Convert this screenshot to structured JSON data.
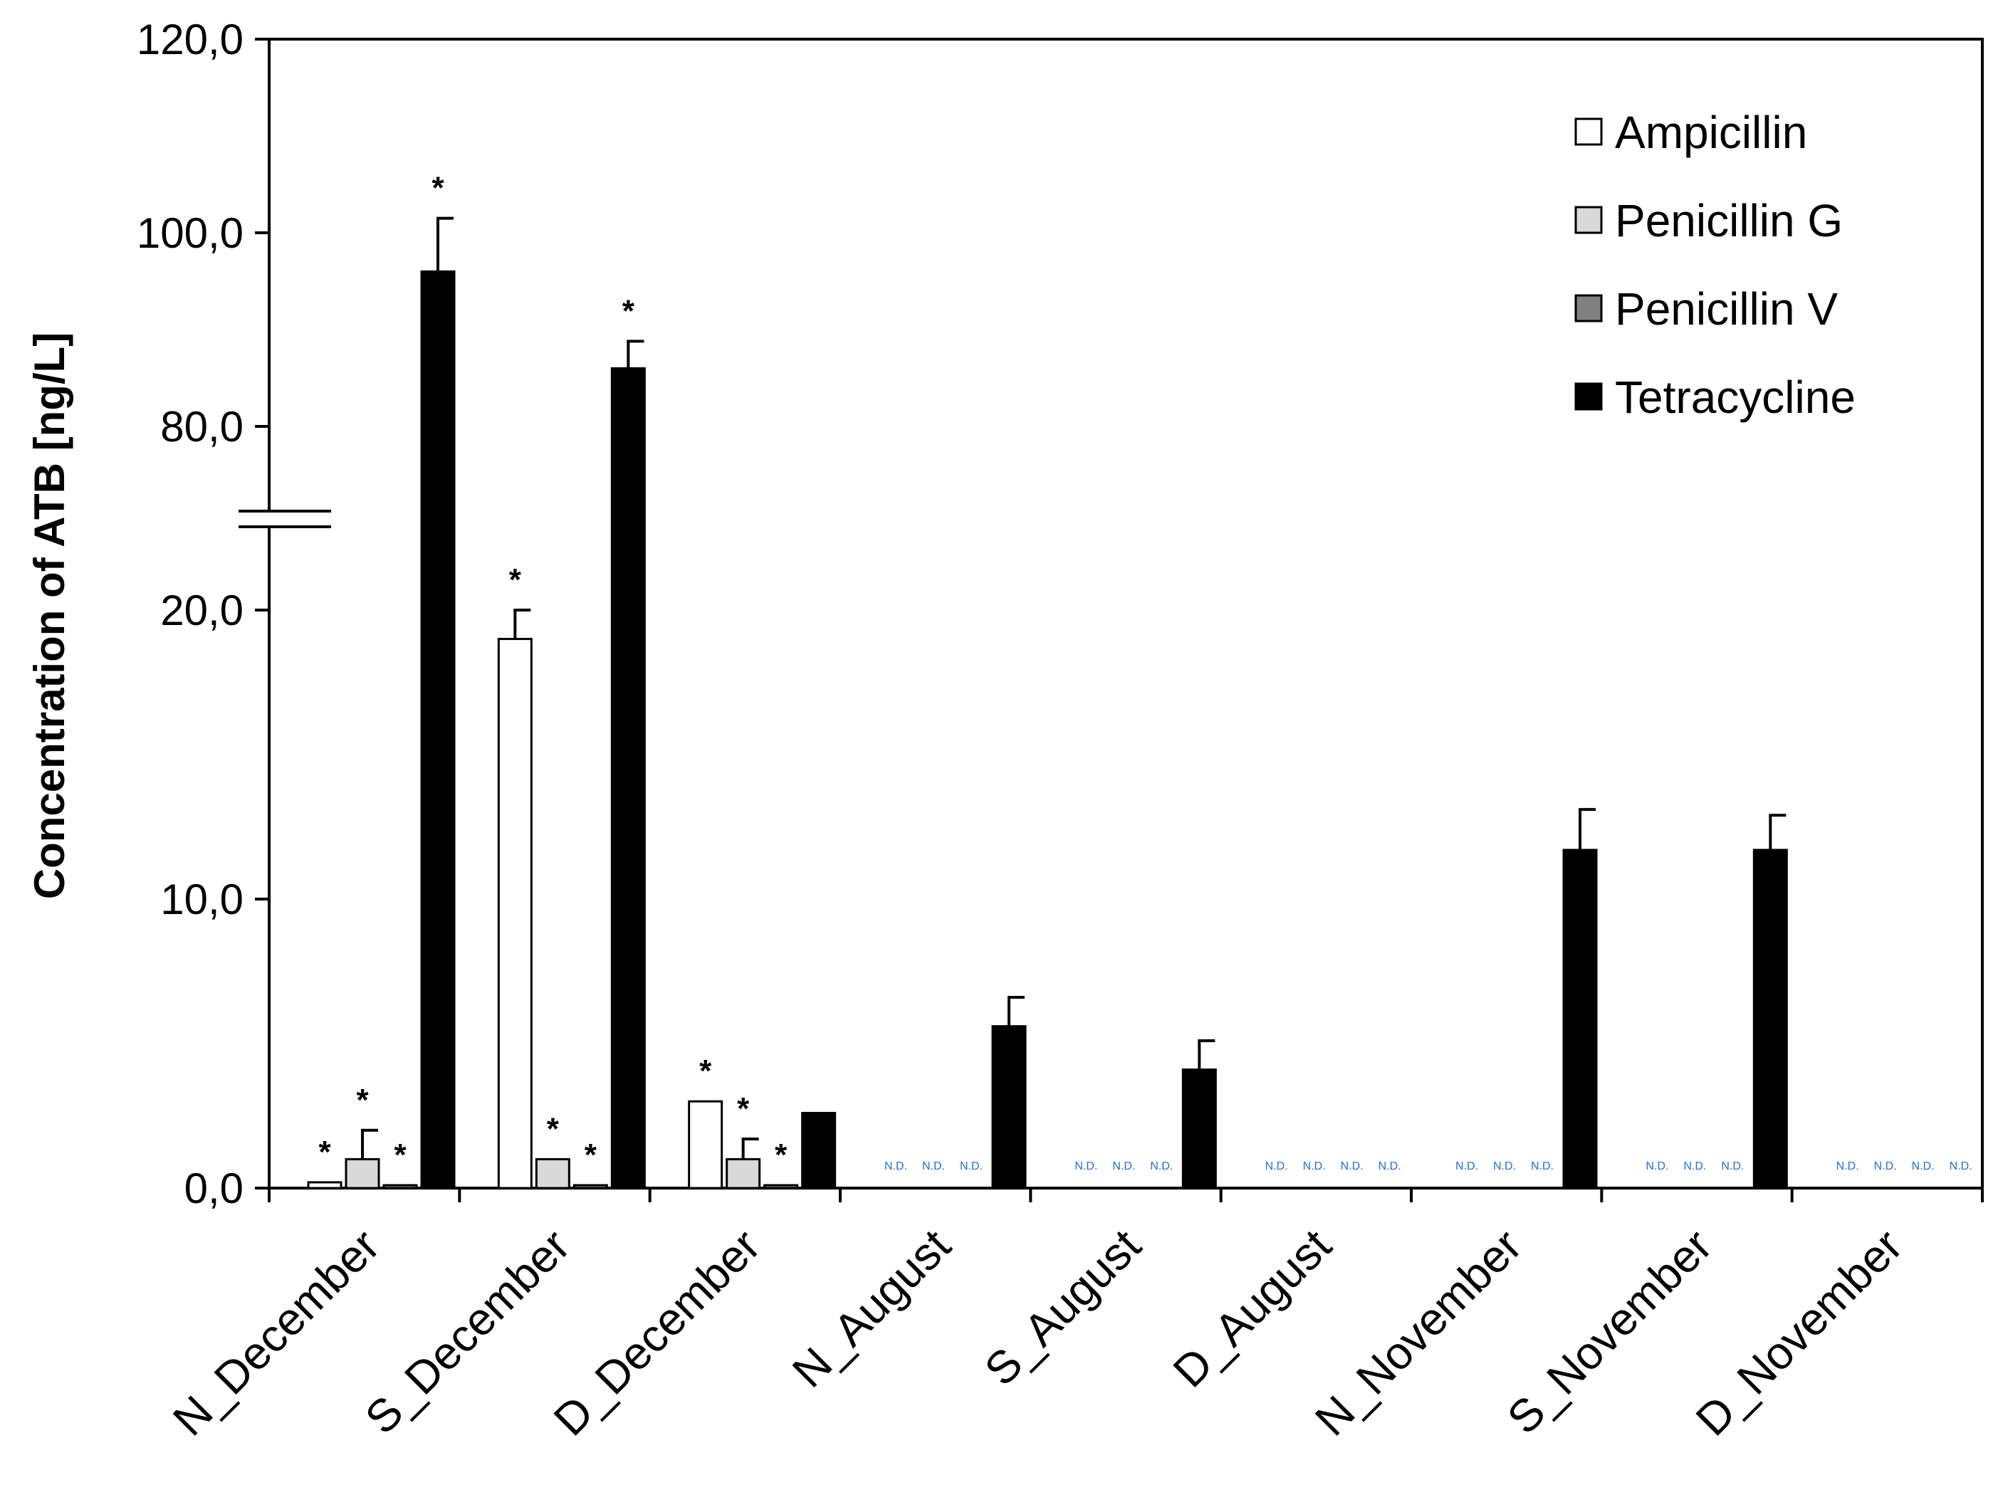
{
  "chart_data": {
    "type": "bar",
    "title": "",
    "xlabel": "",
    "ylabel": "Concentration of ATB [ng/L]",
    "y_axis": {
      "broken": true,
      "ticks": [
        "0,0",
        "10,0",
        "20,0",
        "80,0",
        "100,0",
        "120,0"
      ],
      "lower_range": [
        0,
        20
      ],
      "upper_range": [
        80,
        120
      ]
    },
    "categories": [
      "N_December",
      "S_December",
      "D_December",
      "N_August",
      "S_August",
      "D_August",
      "N_November",
      "S_November",
      "D_November"
    ],
    "series": [
      {
        "name": "Ampicillin",
        "color": "#ffffff",
        "values": [
          0.2,
          19.0,
          3.0,
          null,
          null,
          null,
          null,
          null,
          null
        ],
        "errors": [
          0,
          1.0,
          0,
          null,
          null,
          null,
          null,
          null,
          null
        ],
        "significant": [
          true,
          true,
          true,
          false,
          false,
          false,
          false,
          false,
          false
        ]
      },
      {
        "name": "Penicillin G",
        "color": "#d9d9d9",
        "values": [
          1.0,
          1.0,
          1.0,
          null,
          null,
          null,
          null,
          null,
          null
        ],
        "errors": [
          1.0,
          0,
          0.7,
          null,
          null,
          null,
          null,
          null,
          null
        ],
        "significant": [
          true,
          true,
          true,
          false,
          false,
          false,
          false,
          false,
          false
        ]
      },
      {
        "name": "Penicillin V",
        "color": "#808080",
        "values": [
          0.1,
          0.1,
          0.1,
          null,
          null,
          null,
          null,
          null,
          null
        ],
        "errors": [
          0,
          0,
          0,
          null,
          null,
          null,
          null,
          null,
          null
        ],
        "significant": [
          true,
          true,
          true,
          false,
          false,
          false,
          false,
          false,
          false
        ]
      },
      {
        "name": "Tetracycline",
        "color": "#000000",
        "values": [
          96.0,
          86.0,
          2.6,
          5.6,
          4.1,
          null,
          11.7,
          11.7,
          null
        ],
        "errors": [
          5.5,
          2.8,
          0,
          1.0,
          1.0,
          null,
          1.4,
          1.2,
          null
        ],
        "significant": [
          true,
          true,
          false,
          false,
          false,
          false,
          false,
          false,
          false
        ]
      }
    ],
    "nd_label": "N.D.",
    "significance_marker": "*",
    "legend": {
      "position": "top-right",
      "entries": [
        "Ampicillin",
        "Penicillin G",
        "Penicillin V",
        "Tetracycline"
      ]
    }
  }
}
